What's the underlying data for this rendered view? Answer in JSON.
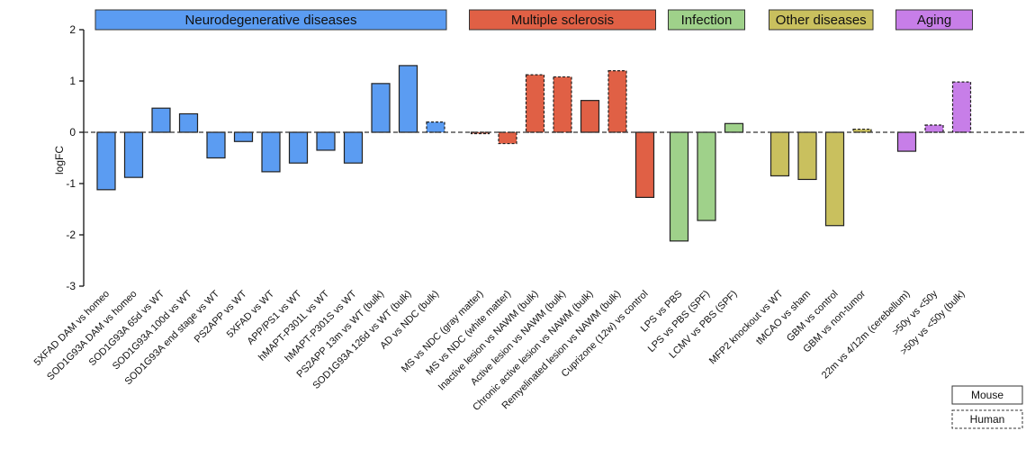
{
  "chart_data": {
    "type": "bar",
    "ylabel": "logFC",
    "ylim": [
      -3,
      2
    ],
    "yticks": [
      2,
      1,
      0,
      -1,
      -2,
      -3
    ],
    "grid": false,
    "colors": {
      "Neurodegenerative diseases": "#5b9cf2",
      "Multiple sclerosis": "#e06045",
      "Infection": "#9fd18a",
      "Other diseases": "#c9c05e",
      "Aging": "#c77ee8"
    },
    "groups": [
      {
        "name": "Neurodegenerative diseases",
        "color": "#5b9cf2",
        "bars": [
          {
            "label": "5XFAD DAM vs homeo",
            "value": -1.12,
            "species": "Mouse"
          },
          {
            "label": "SOD1G93A DAM vs homeo",
            "value": -0.88,
            "species": "Mouse"
          },
          {
            "label": "SOD1G93A 65d vs WT",
            "value": 0.47,
            "species": "Mouse"
          },
          {
            "label": "SOD1G93A 100d vs WT",
            "value": 0.36,
            "species": "Mouse"
          },
          {
            "label": "SOD1G93A end stage vs WT",
            "value": -0.5,
            "species": "Mouse"
          },
          {
            "label": "PS2APP vs WT",
            "value": -0.18,
            "species": "Mouse"
          },
          {
            "label": "5XFAD vs WT",
            "value": -0.77,
            "species": "Mouse"
          },
          {
            "label": "APP/PS1 vs WT",
            "value": -0.6,
            "species": "Mouse"
          },
          {
            "label": "hMAPT-P301L vs WT",
            "value": -0.35,
            "species": "Mouse"
          },
          {
            "label": "hMAPT-P301S vs WT",
            "value": -0.6,
            "species": "Mouse"
          },
          {
            "label": "PS2APP 13m vs WT (bulk)",
            "value": 0.95,
            "species": "Mouse"
          },
          {
            "label": "SOD1G93A 126d vs WT (bulk)",
            "value": 1.3,
            "species": "Mouse"
          },
          {
            "label": "AD vs NDC (bulk)",
            "value": 0.2,
            "species": "Human"
          }
        ]
      },
      {
        "name": "Multiple sclerosis",
        "color": "#e06045",
        "bars": [
          {
            "label": "MS vs NDC (gray matter)",
            "value": -0.02,
            "species": "Human"
          },
          {
            "label": "MS vs NDC (white matter)",
            "value": -0.22,
            "species": "Human"
          },
          {
            "label": "Inactive lesion vs NAWM (bulk)",
            "value": 1.12,
            "species": "Human"
          },
          {
            "label": "Active lesion vs NAWM (bulk)",
            "value": 1.08,
            "species": "Human"
          },
          {
            "label": "Chronic active lesion vs NAWM (bulk)",
            "value": 0.62,
            "species": "Mouse"
          },
          {
            "label": "Remyelinated lesion vs NAWM (bulk)",
            "value": 1.2,
            "species": "Human"
          },
          {
            "label": "Cuprizone (12w) vs control",
            "value": -1.27,
            "species": "Mouse"
          }
        ]
      },
      {
        "name": "Infection",
        "color": "#9fd18a",
        "bars": [
          {
            "label": "LPS vs PBS",
            "value": -2.12,
            "species": "Mouse"
          },
          {
            "label": "LPS vs PBS (SPF)",
            "value": -1.72,
            "species": "Mouse"
          },
          {
            "label": "LCMV vs PBS (SPF)",
            "value": 0.17,
            "species": "Mouse"
          }
        ]
      },
      {
        "name": "Other diseases",
        "color": "#c9c05e",
        "bars": [
          {
            "label": "MFP2 knockout vs WT",
            "value": -0.85,
            "species": "Mouse"
          },
          {
            "label": "tMCAO vs sham",
            "value": -0.92,
            "species": "Mouse"
          },
          {
            "label": "GBM vs control",
            "value": -1.82,
            "species": "Mouse"
          },
          {
            "label": "GBM vs non-tumor",
            "value": 0.06,
            "species": "Human"
          }
        ]
      },
      {
        "name": "Aging",
        "color": "#c77ee8",
        "bars": [
          {
            "label": "22m vs 4/12m (cerebellum)",
            "value": -0.37,
            "species": "Mouse"
          },
          {
            "label": ">50y vs <50y",
            "value": 0.14,
            "species": "Human"
          },
          {
            "label": ">50y vs <50y (bulk)",
            "value": 0.98,
            "species": "Human"
          }
        ]
      }
    ],
    "legend": {
      "placement": "bottom-right",
      "items": [
        {
          "label": "Mouse",
          "style": "solid"
        },
        {
          "label": "Human",
          "style": "dashed"
        }
      ]
    }
  }
}
